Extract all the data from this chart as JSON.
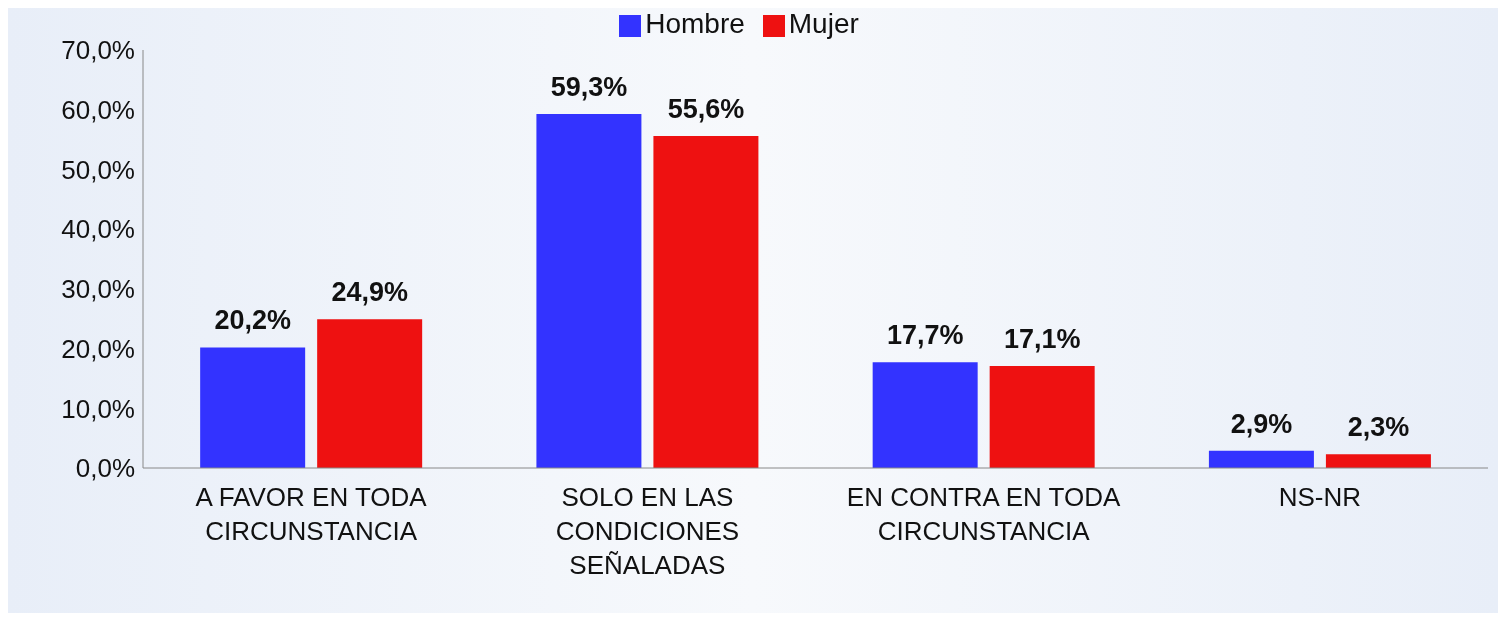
{
  "chart_data": {
    "type": "bar",
    "categories": [
      "A FAVOR EN TODA CIRCUNSTANCIA",
      "SOLO EN LAS CONDICIONES SEÑALADAS",
      "EN CONTRA EN TODA CIRCUNSTANCIA",
      "NS-NR"
    ],
    "series": [
      {
        "name": "Hombre",
        "color": "#3333ff",
        "values": [
          20.2,
          59.3,
          17.7,
          2.9
        ],
        "value_labels": [
          "20,2%",
          "59,3%",
          "17,7%",
          "2,9%"
        ]
      },
      {
        "name": "Mujer",
        "color": "#ee1111",
        "values": [
          24.9,
          55.6,
          17.1,
          2.3
        ],
        "value_labels": [
          "24,9%",
          "55,6%",
          "17,1%",
          "2,3%"
        ]
      }
    ],
    "ylim": [
      0,
      70
    ],
    "yticks": [
      {
        "value": 0,
        "label": "0,0%"
      },
      {
        "value": 10,
        "label": "10,0%"
      },
      {
        "value": 20,
        "label": "20,0%"
      },
      {
        "value": 30,
        "label": "30,0%"
      },
      {
        "value": 40,
        "label": "40,0%"
      },
      {
        "value": 50,
        "label": "50,0%"
      },
      {
        "value": 60,
        "label": "60,0%"
      },
      {
        "value": 70,
        "label": "70,0%"
      }
    ],
    "grid": false,
    "legend": "top"
  }
}
